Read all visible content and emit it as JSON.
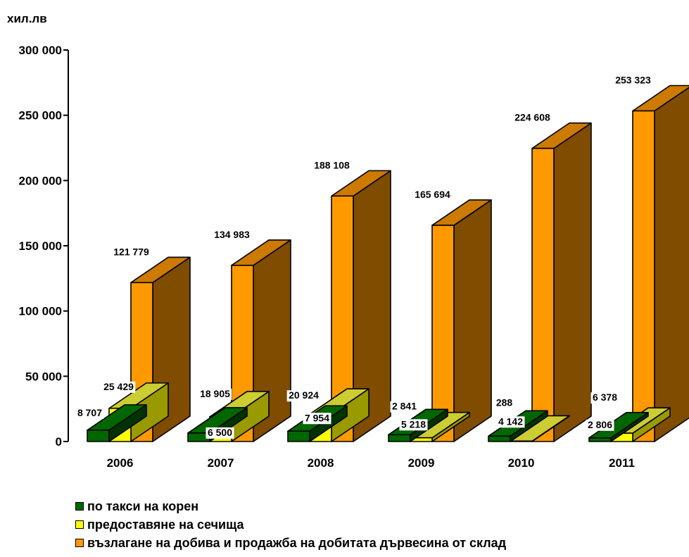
{
  "chart_data": {
    "type": "bar",
    "ylabel": "хил.лв",
    "ylim": [
      0,
      300000
    ],
    "yticks": [
      0,
      50000,
      100000,
      150000,
      200000,
      250000,
      300000
    ],
    "ytick_labels": [
      "0",
      "50 000",
      "100 000",
      "150 000",
      "200 000",
      "250 000",
      "300 000"
    ],
    "categories": [
      "2006",
      "2007",
      "2008",
      "2009",
      "2010",
      "2011"
    ],
    "series": [
      {
        "name": "по такси на корен",
        "color": "#006600",
        "values": [
          8707,
          6500,
          7954,
          5218,
          4142,
          2806
        ],
        "labels": [
          "8 707",
          "6 500",
          "7 954",
          "5 218",
          "4 142",
          "2 806"
        ]
      },
      {
        "name": "предоставяне на сечища",
        "color": "#FFFF00",
        "values": [
          25429,
          18905,
          20924,
          2841,
          288,
          6378
        ],
        "labels": [
          "25 429",
          "18 905",
          "20 924",
          "2 841",
          "288",
          "6 378"
        ]
      },
      {
        "name": "възлагане на добива и продажба на добитата дървесина от склад",
        "color": "#FF9900",
        "values": [
          121779,
          134983,
          188108,
          165694,
          224608,
          253323
        ],
        "labels": [
          "121 779",
          "134 983",
          "188 108",
          "165 694",
          "224 608",
          "253 323"
        ]
      }
    ],
    "legend_position": "bottom-left",
    "grid": false
  }
}
